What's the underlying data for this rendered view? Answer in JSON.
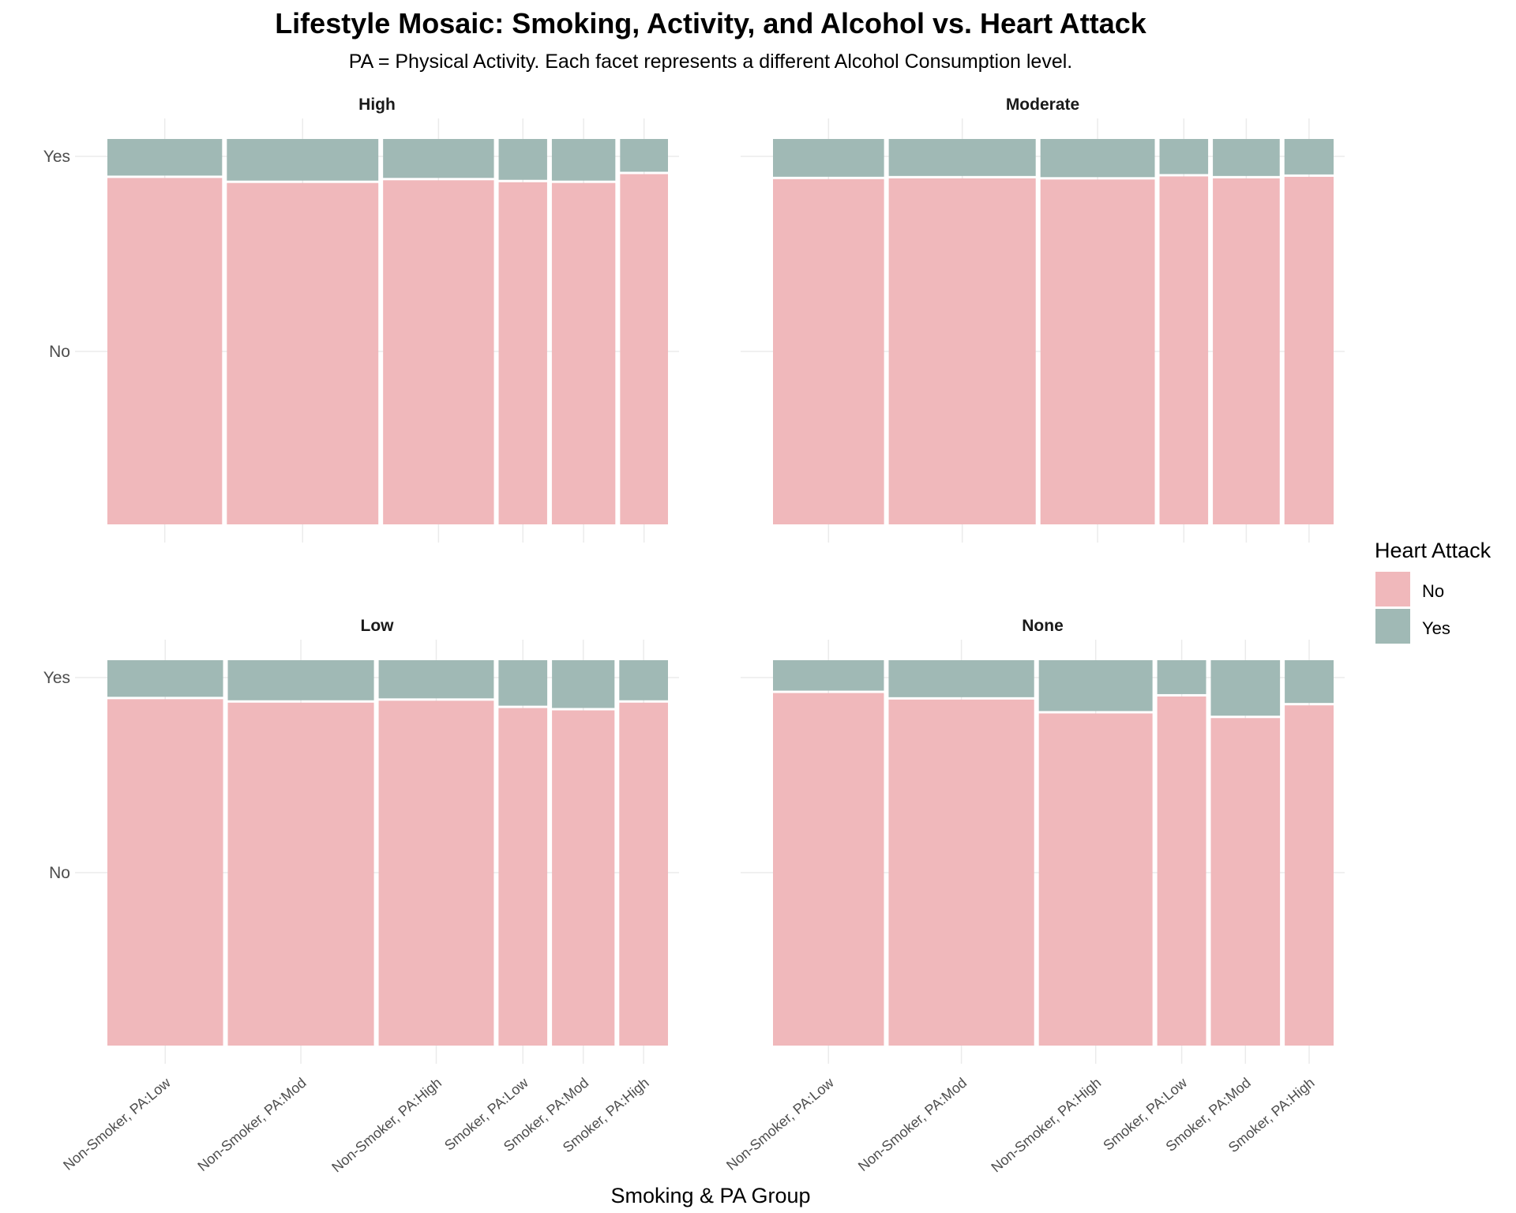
{
  "chart_data": {
    "type": "mosaic",
    "title": "Lifestyle Mosaic: Smoking, Activity, and Alcohol vs. Heart Attack",
    "subtitle": "PA = Physical Activity. Each facet represents a different Alcohol Consumption level.",
    "xlabel": "Smoking & PA Group",
    "ylabel": "",
    "y_categories": [
      "No",
      "Yes"
    ],
    "legend": {
      "title": "Heart Attack",
      "position": "right",
      "entries": [
        {
          "label": "No",
          "color": "#f0b8bb"
        },
        {
          "label": "Yes",
          "color": "#a0b9b5"
        }
      ]
    },
    "colors": {
      "No": "#f0b8bb",
      "Yes": "#a0b9b5"
    },
    "grid": true,
    "facets": [
      {
        "label": "High",
        "categories": [
          "Non-Smoker, PA:Low",
          "Non-Smoker, PA:Mod",
          "Non-Smoker, PA:High",
          "Smoker, PA:Low",
          "Smoker, PA:Mod",
          "Smoker, PA:High"
        ],
        "widths": [
          0.206,
          0.272,
          0.199,
          0.087,
          0.114,
          0.086
        ],
        "yes_share": [
          0.095,
          0.108,
          0.101,
          0.106,
          0.108,
          0.085
        ]
      },
      {
        "label": "Moderate",
        "categories": [
          "Non-Smoker, PA:Low",
          "Non-Smoker, PA:Mod",
          "Non-Smoker, PA:High",
          "Smoker, PA:Low",
          "Smoker, PA:Mod",
          "Smoker, PA:High"
        ],
        "widths": [
          0.201,
          0.266,
          0.207,
          0.088,
          0.121,
          0.089
        ],
        "yes_share": [
          0.098,
          0.096,
          0.099,
          0.091,
          0.096,
          0.092
        ]
      },
      {
        "label": "Low",
        "categories": [
          "Non-Smoker, PA:Low",
          "Non-Smoker, PA:Mod",
          "Non-Smoker, PA:High",
          "Smoker, PA:Low",
          "Smoker, PA:Mod",
          "Smoker, PA:High"
        ],
        "widths": [
          0.209,
          0.264,
          0.208,
          0.088,
          0.113,
          0.088
        ],
        "yes_share": [
          0.095,
          0.104,
          0.099,
          0.118,
          0.124,
          0.104
        ]
      },
      {
        "label": "None",
        "categories": [
          "Non-Smoker, PA:Low",
          "Non-Smoker, PA:Mod",
          "Non-Smoker, PA:High",
          "Smoker, PA:Low",
          "Smoker, PA:Mod",
          "Smoker, PA:High"
        ],
        "widths": [
          0.202,
          0.265,
          0.207,
          0.089,
          0.126,
          0.089
        ],
        "yes_share": [
          0.079,
          0.096,
          0.132,
          0.088,
          0.144,
          0.111
        ]
      }
    ]
  }
}
